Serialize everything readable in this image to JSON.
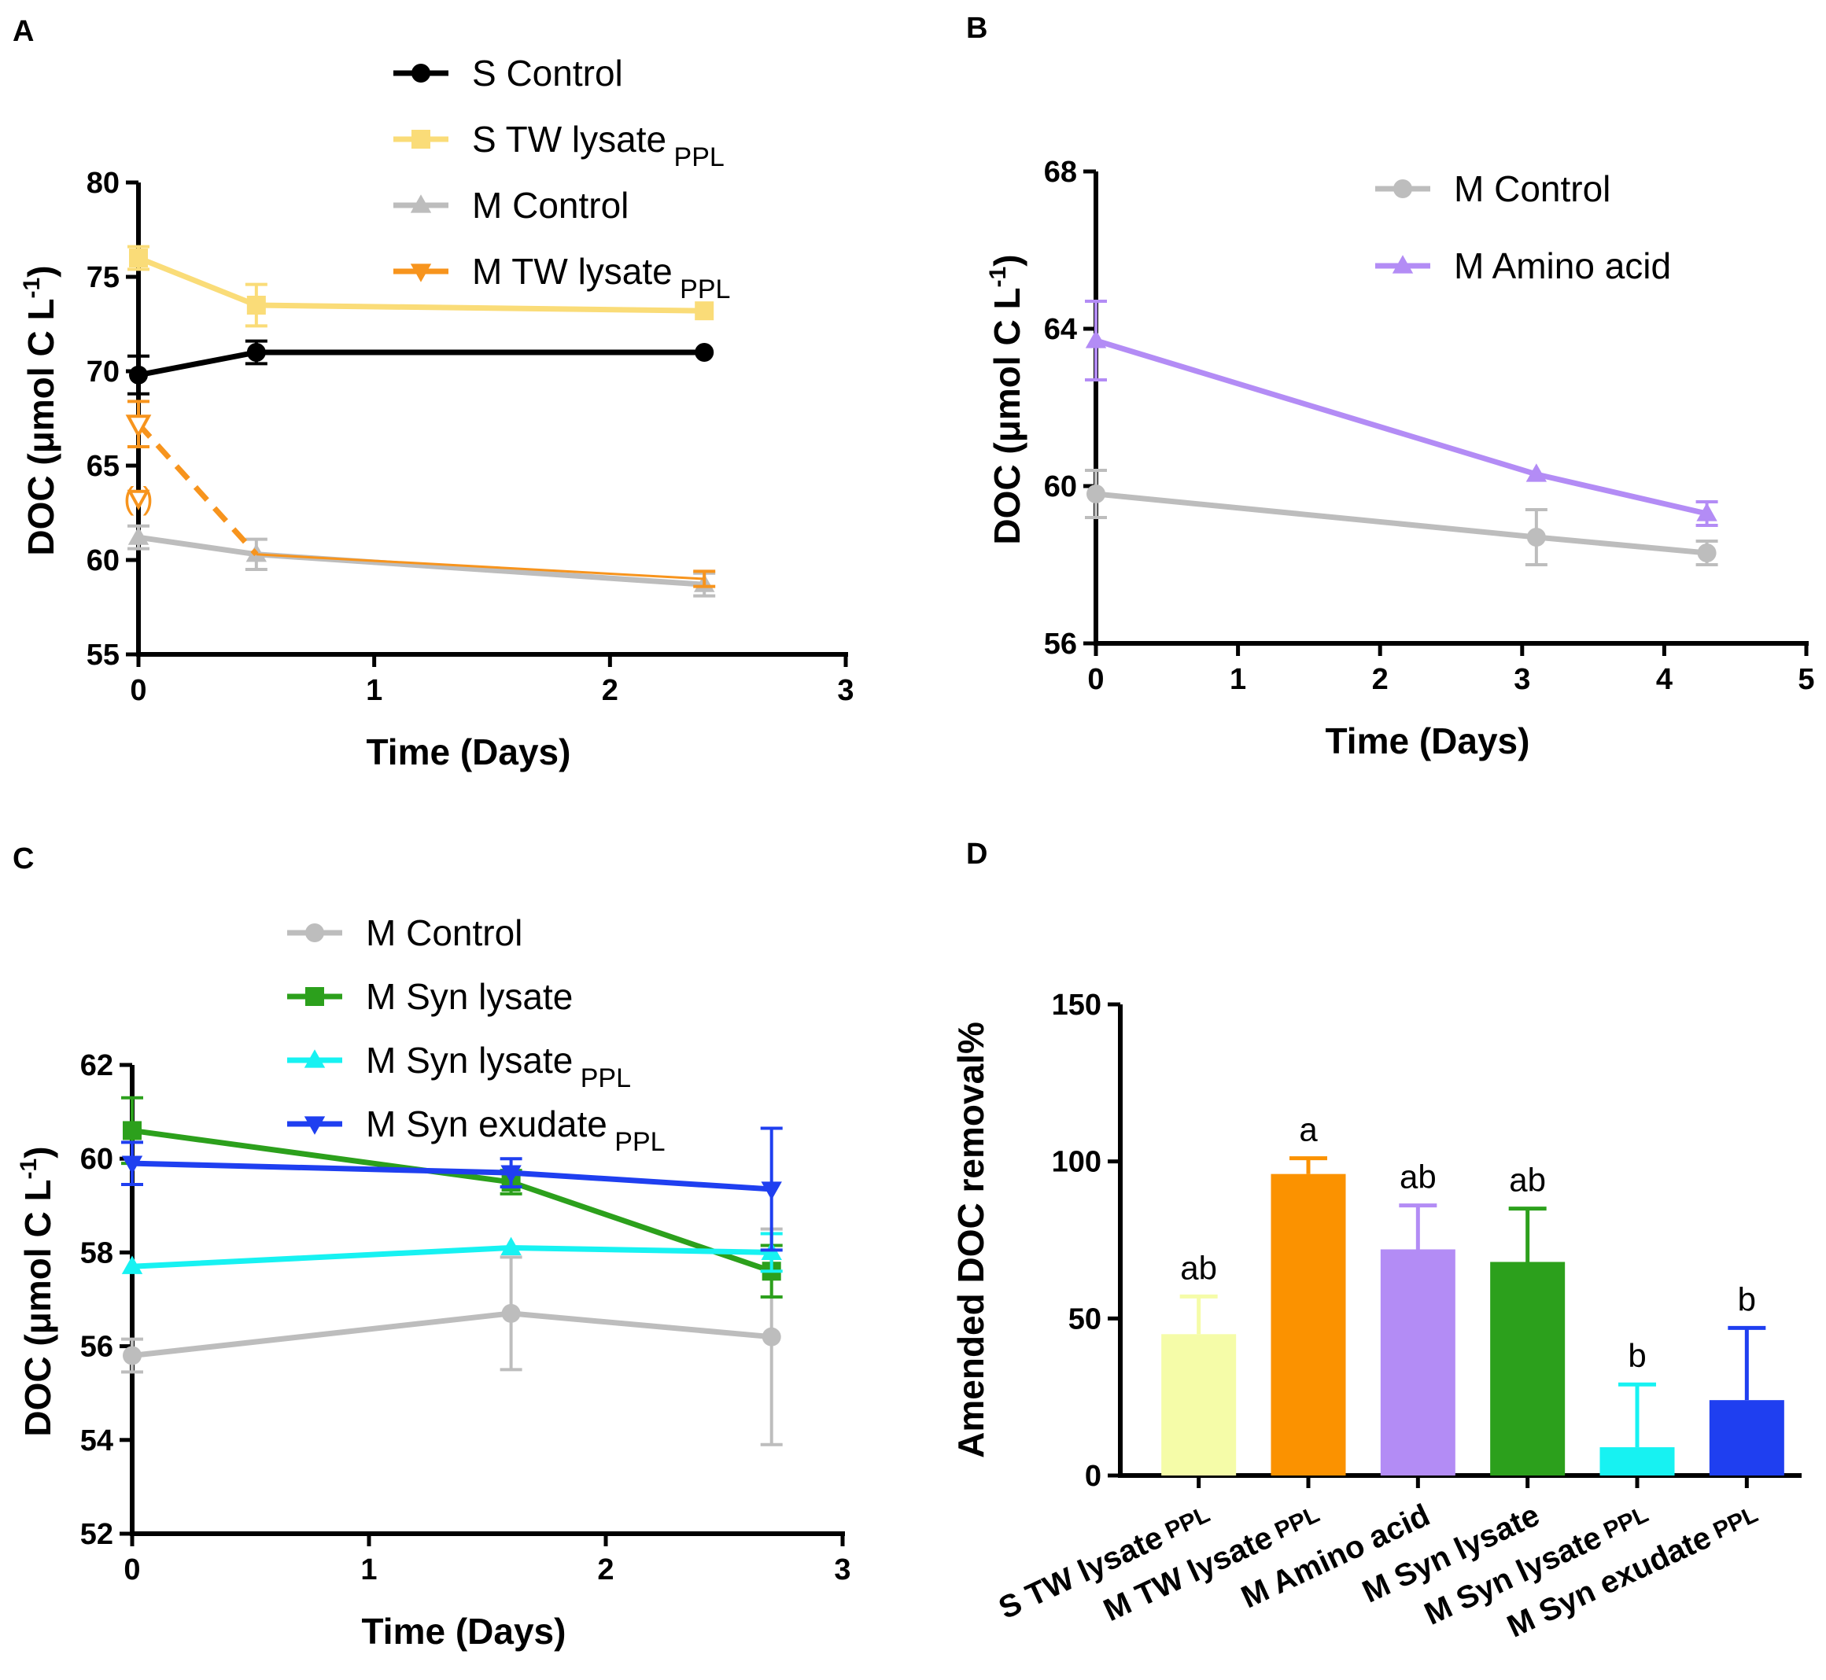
{
  "panels": {
    "A": {
      "label": "A",
      "chart_data": {
        "type": "line",
        "xlabel": "Time (Days)",
        "ylabel_main": "DOC (",
        "ylabel_unit": "μmol C L",
        "ylabel_sup": "-1",
        "ylabel_end": ")",
        "xlim": [
          0,
          3
        ],
        "ylim": [
          55,
          80
        ],
        "xticks": [
          "0",
          "1",
          "2",
          "3"
        ],
        "yticks": [
          "55",
          "60",
          "65",
          "70",
          "75",
          "80"
        ],
        "series": [
          {
            "name": "S Control",
            "sub": "",
            "color": "#000000",
            "marker": "circle",
            "x": [
              0,
              0.5,
              2.4
            ],
            "y": [
              69.8,
              71.0,
              71.0
            ],
            "err": [
              1.0,
              0.6,
              0
            ]
          },
          {
            "name": "S TW lysate",
            "sub": "PPL",
            "color": "#fadc78",
            "marker": "square",
            "x": [
              0,
              0.5,
              2.4
            ],
            "y": [
              76.0,
              73.5,
              73.2
            ],
            "err": [
              0.6,
              1.1,
              0
            ]
          },
          {
            "name": "M Control",
            "sub": "",
            "color": "#bdbdbd",
            "marker": "triangle-up",
            "x": [
              0,
              0.5,
              2.4
            ],
            "y": [
              61.2,
              60.3,
              58.7
            ],
            "err": [
              0.6,
              0.8,
              0.6
            ]
          },
          {
            "name": "M TW lysate",
            "sub": "PPL",
            "color": "#f7941d",
            "marker": "triangle-down",
            "x": [
              0,
              0.5,
              2.4
            ],
            "y": [
              67.2,
              60.3,
              59.0
            ],
            "err": [
              1.2,
              0,
              0.4
            ]
          }
        ]
      }
    },
    "B": {
      "label": "B",
      "chart_data": {
        "type": "line",
        "xlabel": "Time (Days)",
        "ylabel_main": "DOC (",
        "ylabel_unit": "μmol C L",
        "ylabel_sup": "-1",
        "ylabel_end": ")",
        "xlim": [
          0,
          5
        ],
        "ylim": [
          56,
          68
        ],
        "xticks": [
          "0",
          "1",
          "2",
          "3",
          "4",
          "5"
        ],
        "yticks": [
          "56",
          "60",
          "64",
          "68"
        ],
        "series": [
          {
            "name": "M Control",
            "sub": "",
            "color": "#bdbdbd",
            "marker": "circle",
            "x": [
              0,
              3.1,
              4.3
            ],
            "y": [
              59.8,
              58.7,
              58.3
            ],
            "err": [
              0.6,
              0.7,
              0.3
            ]
          },
          {
            "name": "M Amino acid",
            "sub": "",
            "color": "#b38cf5",
            "marker": "triangle-up",
            "x": [
              0,
              3.1,
              4.3
            ],
            "y": [
              63.7,
              60.3,
              59.3
            ],
            "err": [
              1.0,
              0,
              0.3
            ]
          }
        ]
      }
    },
    "C": {
      "label": "C",
      "chart_data": {
        "type": "line",
        "xlabel": "Time (Days)",
        "ylabel_main": "DOC (",
        "ylabel_unit": "μmol C L",
        "ylabel_sup": "-1",
        "ylabel_end": ")",
        "xlim": [
          0,
          3
        ],
        "ylim": [
          52,
          62
        ],
        "xticks": [
          "0",
          "1",
          "2",
          "3"
        ],
        "yticks": [
          "52",
          "54",
          "56",
          "58",
          "60",
          "62"
        ],
        "series": [
          {
            "name": "M Control",
            "sub": "",
            "color": "#bdbdbd",
            "marker": "circle",
            "x": [
              0,
              1.6,
              2.7
            ],
            "y": [
              55.8,
              56.7,
              56.2
            ],
            "err": [
              0.35,
              1.2,
              2.3
            ]
          },
          {
            "name": "M Syn lysate",
            "sub": "",
            "color": "#2ca01c",
            "marker": "square",
            "x": [
              0,
              1.6,
              2.7
            ],
            "y": [
              60.6,
              59.5,
              57.6
            ],
            "err": [
              0.7,
              0.25,
              0.55
            ]
          },
          {
            "name": "M Syn lysate",
            "sub": "PPL",
            "color": "#17f2f2",
            "marker": "triangle-up",
            "x": [
              0,
              1.6,
              2.7
            ],
            "y": [
              57.7,
              58.1,
              58.0
            ],
            "err": [
              0,
              0,
              0.4
            ]
          },
          {
            "name": "M Syn exudate",
            "sub": "PPL",
            "color": "#1f3ff0",
            "marker": "triangle-down",
            "x": [
              0,
              1.6,
              2.7
            ],
            "y": [
              59.9,
              59.7,
              59.35
            ],
            "err": [
              0.45,
              0.3,
              1.3
            ]
          }
        ]
      }
    },
    "D": {
      "label": "D",
      "chart_data": {
        "type": "bar",
        "ylabel": "Amended DOC removal%",
        "ylim": [
          0,
          150
        ],
        "yticks": [
          "0",
          "50",
          "100",
          "150"
        ],
        "categories": [
          {
            "name": "S TW lysate",
            "sub": "PPL"
          },
          {
            "name": "M TW lysate",
            "sub": "PPL"
          },
          {
            "name": "M Amino acid",
            "sub": ""
          },
          {
            "name": "M Syn lysate",
            "sub": ""
          },
          {
            "name": "M Syn lysate",
            "sub": "PPL"
          },
          {
            "name": "M Syn exudate",
            "sub": "PPL"
          }
        ],
        "values": [
          45,
          96,
          72,
          68,
          9,
          24
        ],
        "errors": [
          12,
          5,
          14,
          17,
          20,
          23
        ],
        "colors": [
          "#f5fca8",
          "#fb9200",
          "#b38cf5",
          "#2ca01c",
          "#17f2f2",
          "#1f3ff0"
        ],
        "significance": [
          "ab",
          "a",
          "ab",
          "ab",
          "b",
          "b"
        ]
      }
    }
  }
}
